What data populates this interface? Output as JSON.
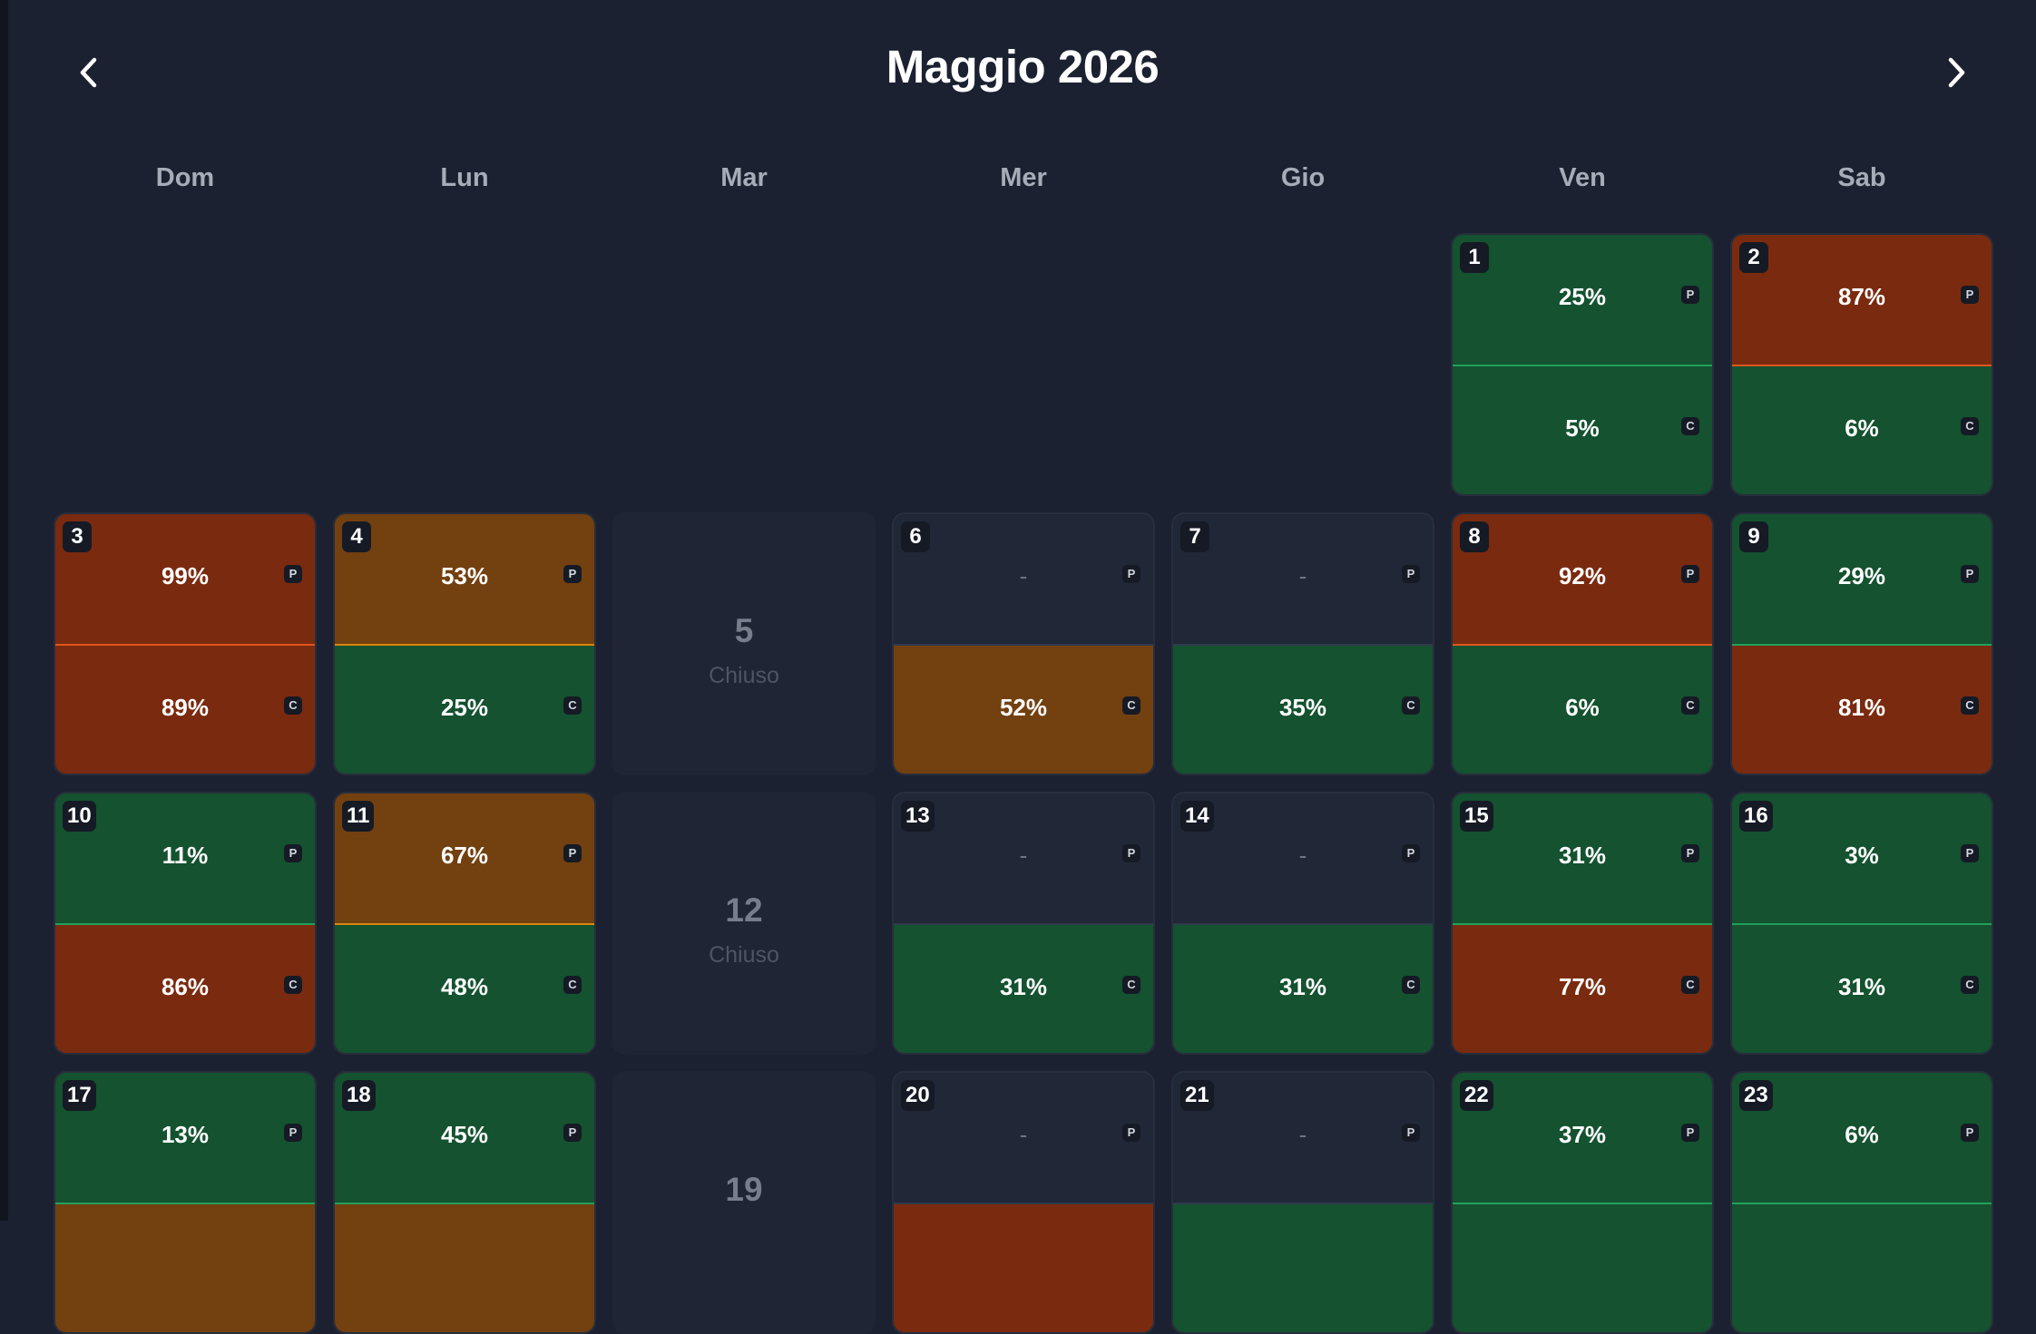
{
  "header": {
    "title": "Maggio 2026"
  },
  "weekdays": [
    "Dom",
    "Lun",
    "Mar",
    "Mer",
    "Gio",
    "Ven",
    "Sab"
  ],
  "closed_label": "Chiuso",
  "colors": {
    "low": "#145230",
    "medium": "#734010",
    "high": "#7a2a0f",
    "empty": "#202838",
    "closed": "#1f2534"
  },
  "days": [
    {
      "day": "1",
      "col": 5,
      "row": 0,
      "p": "25%",
      "c": "5%"
    },
    {
      "day": "2",
      "col": 6,
      "row": 0,
      "p": "87%",
      "c": "6%"
    },
    {
      "day": "3",
      "col": 0,
      "row": 1,
      "p": "99%",
      "c": "89%"
    },
    {
      "day": "4",
      "col": 1,
      "row": 1,
      "p": "53%",
      "c": "25%"
    },
    {
      "day": "5",
      "col": 2,
      "row": 1,
      "closed": true
    },
    {
      "day": "6",
      "col": 3,
      "row": 1,
      "p": "-",
      "c": "52%"
    },
    {
      "day": "7",
      "col": 4,
      "row": 1,
      "p": "-",
      "c": "35%"
    },
    {
      "day": "8",
      "col": 5,
      "row": 1,
      "p": "92%",
      "c": "6%"
    },
    {
      "day": "9",
      "col": 6,
      "row": 1,
      "p": "29%",
      "c": "81%"
    },
    {
      "day": "10",
      "col": 0,
      "row": 2,
      "p": "11%",
      "c": "86%"
    },
    {
      "day": "11",
      "col": 1,
      "row": 2,
      "p": "67%",
      "c": "48%"
    },
    {
      "day": "12",
      "col": 2,
      "row": 2,
      "closed": true
    },
    {
      "day": "13",
      "col": 3,
      "row": 2,
      "p": "-",
      "c": "31%"
    },
    {
      "day": "14",
      "col": 4,
      "row": 2,
      "p": "-",
      "c": "31%"
    },
    {
      "day": "15",
      "col": 5,
      "row": 2,
      "p": "31%",
      "c": "77%"
    },
    {
      "day": "16",
      "col": 6,
      "row": 2,
      "p": "3%",
      "c": "31%"
    },
    {
      "day": "17",
      "col": 0,
      "row": 3,
      "p": "13%",
      "c": "",
      "c_level": "medium"
    },
    {
      "day": "18",
      "col": 1,
      "row": 3,
      "p": "45%",
      "c": "",
      "c_level": "medium"
    },
    {
      "day": "19",
      "col": 2,
      "row": 3,
      "closed": true,
      "hide_label": true
    },
    {
      "day": "20",
      "col": 3,
      "row": 3,
      "p": "-",
      "c": "",
      "c_level": "high"
    },
    {
      "day": "21",
      "col": 4,
      "row": 3,
      "p": "-",
      "c": "",
      "c_level": "low"
    },
    {
      "day": "22",
      "col": 5,
      "row": 3,
      "p": "37%",
      "c": "",
      "c_level": "low"
    },
    {
      "day": "23",
      "col": 6,
      "row": 3,
      "p": "6%",
      "c": "",
      "c_level": "low"
    }
  ],
  "tags": {
    "top": "P",
    "bottom": "C"
  }
}
